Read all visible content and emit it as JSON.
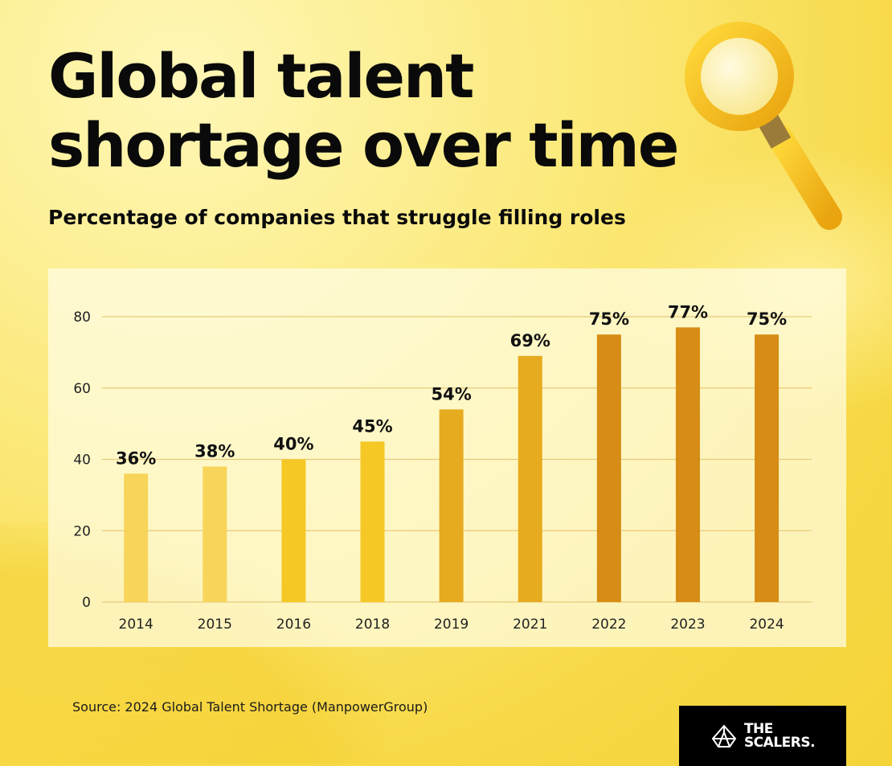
{
  "header": {
    "title_line1": "Global talent",
    "title_line2": "shortage over time",
    "subtitle": "Percentage of companies that struggle filling roles"
  },
  "footer": {
    "source": "Source: 2024 Global Talent Shortage (ManpowerGroup)",
    "logo": "THE SCALERS."
  },
  "decoration": {
    "icon": "magnifying-glass-icon"
  },
  "chart_data": {
    "type": "bar",
    "categories": [
      "2014",
      "2015",
      "2016",
      "2018",
      "2019",
      "2021",
      "2022",
      "2023",
      "2024"
    ],
    "values": [
      36,
      38,
      40,
      45,
      54,
      69,
      75,
      77,
      75
    ],
    "data_labels": [
      "36%",
      "38%",
      "40%",
      "45%",
      "54%",
      "69%",
      "75%",
      "77%",
      "75%"
    ],
    "colors": [
      "#f7d55a",
      "#f7d55a",
      "#f5c825",
      "#f5c825",
      "#e6ab1f",
      "#e6ab1f",
      "#d68c15",
      "#d68c15",
      "#d68c15"
    ],
    "yticks": [
      "0",
      "20",
      "40",
      "60",
      "80"
    ],
    "ylim": [
      0,
      80
    ],
    "grid": true,
    "title": "",
    "xlabel": "",
    "ylabel": ""
  }
}
